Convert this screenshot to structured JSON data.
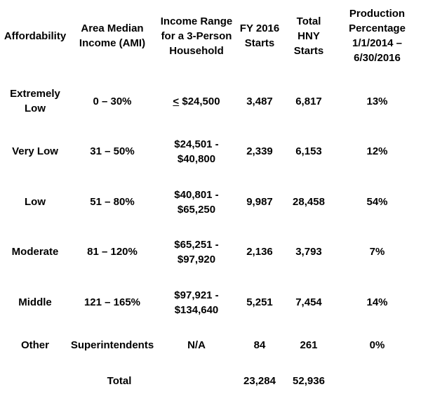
{
  "headers": {
    "affordability": "Affordability",
    "ami": "Area Median\nIncome (AMI)",
    "income_range": "Income Range\nfor a 3-Person\nHousehold",
    "fy_starts": "FY 2016\nStarts",
    "total_starts": "Total\nHNY\nStarts",
    "production_pct": "Production\nPercentage\n1/1/2014 –\n6/30/2016"
  },
  "rows": [
    {
      "affordability": "Extremely\nLow",
      "ami": "0 – 30%",
      "income_prefix": "<",
      "income_range": " $24,500",
      "fy_starts": "3,487",
      "total_starts": "6,817",
      "production_pct": "13%"
    },
    {
      "affordability": "Very Low",
      "ami": "31 – 50%",
      "income_range": "$24,501 -\n$40,800",
      "fy_starts": "2,339",
      "total_starts": "6,153",
      "production_pct": "12%"
    },
    {
      "affordability": "Low",
      "ami": "51 – 80%",
      "income_range": "$40,801 -\n$65,250",
      "fy_starts": "9,987",
      "total_starts": "28,458",
      "production_pct": "54%"
    },
    {
      "affordability": "Moderate",
      "ami": "81 – 120%",
      "income_range": "$65,251 -\n$97,920",
      "fy_starts": "2,136",
      "total_starts": "3,793",
      "production_pct": "7%"
    },
    {
      "affordability": "Middle",
      "ami": "121 – 165%",
      "income_range": "$97,921 -\n$134,640",
      "fy_starts": "5,251",
      "total_starts": "7,454",
      "production_pct": "14%"
    },
    {
      "affordability": "Other",
      "ami": "Superintendents",
      "income_range": "N/A",
      "fy_starts": "84",
      "total_starts": "261",
      "production_pct": "0%"
    }
  ],
  "total": {
    "label": "Total",
    "fy_starts": "23,284",
    "total_starts": "52,936"
  }
}
